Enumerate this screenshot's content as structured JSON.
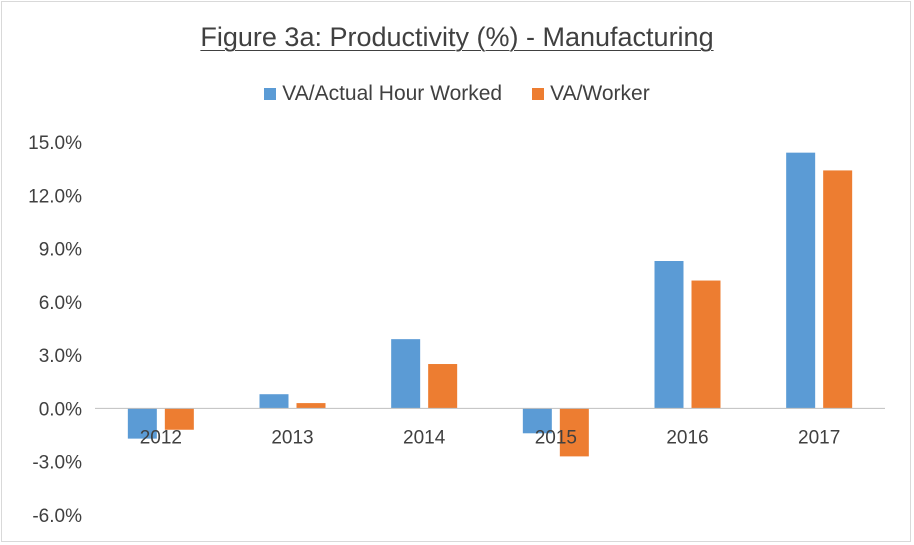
{
  "chart_data": {
    "type": "bar",
    "title": "Figure 3a: Productivity (%) - Manufacturing",
    "categories": [
      "2012",
      "2013",
      "2014",
      "2015",
      "2016",
      "2017"
    ],
    "series": [
      {
        "name": "VA/Actual Hour Worked",
        "color": "#5b9bd5",
        "values": [
          -1.7,
          0.8,
          3.9,
          -1.4,
          8.3,
          14.4
        ]
      },
      {
        "name": "VA/Worker",
        "color": "#ed7d31",
        "values": [
          -1.2,
          0.3,
          2.5,
          -2.7,
          7.2,
          13.4
        ]
      }
    ],
    "ylim": [
      -6.0,
      15.0
    ],
    "yticks": [
      15.0,
      12.0,
      9.0,
      6.0,
      3.0,
      0.0,
      -3.0,
      -6.0
    ],
    "ytick_labels": [
      "15.0%",
      "12.0%",
      "9.0%",
      "6.0%",
      "3.0%",
      "0.0%",
      "-3.0%",
      "-6.0%"
    ],
    "legend_position": "top",
    "grid": false
  }
}
